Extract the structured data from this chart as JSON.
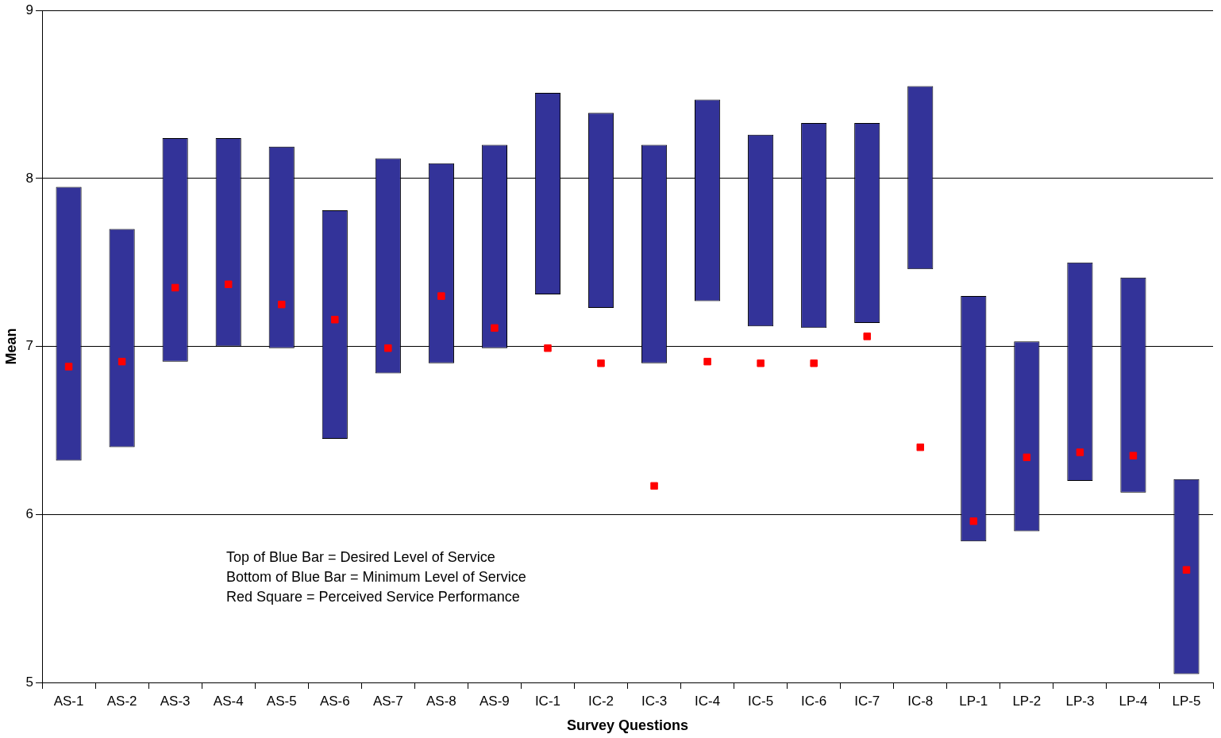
{
  "chart_data": {
    "type": "bar",
    "xlabel": "Survey Questions",
    "ylabel": "Mean",
    "categories": [
      "AS-1",
      "AS-2",
      "AS-3",
      "AS-4",
      "AS-5",
      "AS-6",
      "AS-7",
      "AS-8",
      "AS-9",
      "IC-1",
      "IC-2",
      "IC-3",
      "IC-4",
      "IC-5",
      "IC-6",
      "IC-7",
      "IC-8",
      "LP-1",
      "LP-2",
      "LP-3",
      "LP-4",
      "LP-5"
    ],
    "series": [
      {
        "color": "#333399",
        "base": [
          6.32,
          6.4,
          6.91,
          7.0,
          6.99,
          6.45,
          6.84,
          6.9,
          6.99,
          7.31,
          7.23,
          6.9,
          7.27,
          7.12,
          7.11,
          7.14,
          7.46,
          5.84,
          5.9,
          6.2,
          6.13,
          5.05
        ],
        "values": [
          1.63,
          1.3,
          1.33,
          1.24,
          1.2,
          1.36,
          1.28,
          1.19,
          1.21,
          1.2,
          1.16,
          1.3,
          1.2,
          1.14,
          1.22,
          1.19,
          1.09,
          1.46,
          1.13,
          1.3,
          1.28,
          1.16
        ]
      },
      {
        "type": "scatter",
        "color": "#ff0000",
        "marker": "square",
        "x": [
          "AS-1",
          "AS-2",
          "AS-3",
          "AS-4",
          "AS-5",
          "AS-6",
          "AS-7",
          "AS-8",
          "AS-9",
          "IC-1",
          "IC-2",
          "IC-3",
          "IC-4",
          "IC-5",
          "IC-6",
          "IC-7",
          "IC-8",
          "LP-1",
          "LP-2",
          "LP-3",
          "LP-4",
          "LP-5"
        ],
        "values": [
          6.88,
          6.91,
          7.35,
          7.37,
          7.25,
          7.16,
          6.99,
          7.3,
          7.11,
          6.99,
          6.9,
          6.17,
          6.91,
          6.9,
          6.9,
          7.06,
          6.4,
          5.96,
          6.34,
          6.37,
          6.35,
          5.67
        ]
      }
    ],
    "ylim": [
      5,
      9
    ],
    "yticks": [
      5,
      6,
      7,
      8,
      9
    ],
    "grid": "y",
    "legend": false,
    "annotations": [
      "Top of Blue Bar = Desired Level of Service",
      "Bottom of Blue Bar = Minimum Level of Service",
      "Red Square = Perceived Service Performance"
    ]
  }
}
